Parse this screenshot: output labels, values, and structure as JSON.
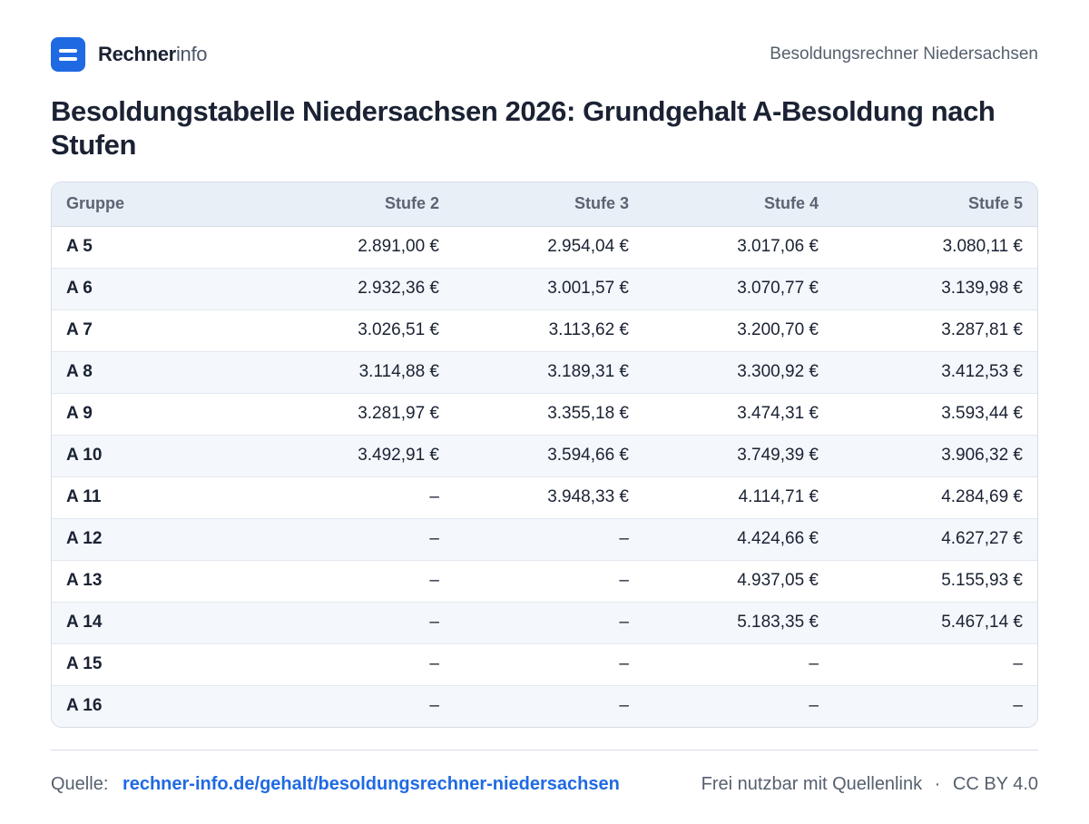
{
  "header": {
    "brand_bold": "Rechner",
    "brand_light": "info",
    "context": "Besoldungsrechner Niedersachsen",
    "logo_icon": "equals-icon"
  },
  "title": "Besoldungstabelle Niedersachsen 2026: Grundgehalt A-Besoldung nach Stufen",
  "table": {
    "columns": [
      "Gruppe",
      "Stufe 2",
      "Stufe 3",
      "Stufe 4",
      "Stufe 5"
    ],
    "rows": [
      [
        "A 5",
        "2.891,00 €",
        "2.954,04 €",
        "3.017,06 €",
        "3.080,11 €"
      ],
      [
        "A 6",
        "2.932,36 €",
        "3.001,57 €",
        "3.070,77 €",
        "3.139,98 €"
      ],
      [
        "A 7",
        "3.026,51 €",
        "3.113,62 €",
        "3.200,70 €",
        "3.287,81 €"
      ],
      [
        "A 8",
        "3.114,88 €",
        "3.189,31 €",
        "3.300,92 €",
        "3.412,53 €"
      ],
      [
        "A 9",
        "3.281,97 €",
        "3.355,18 €",
        "3.474,31 €",
        "3.593,44 €"
      ],
      [
        "A 10",
        "3.492,91 €",
        "3.594,66 €",
        "3.749,39 €",
        "3.906,32 €"
      ],
      [
        "A 11",
        "–",
        "3.948,33 €",
        "4.114,71 €",
        "4.284,69 €"
      ],
      [
        "A 12",
        "–",
        "–",
        "4.424,66 €",
        "4.627,27 €"
      ],
      [
        "A 13",
        "–",
        "–",
        "4.937,05 €",
        "5.155,93 €"
      ],
      [
        "A 14",
        "–",
        "–",
        "5.183,35 €",
        "5.467,14 €"
      ],
      [
        "A 15",
        "–",
        "–",
        "–",
        "–"
      ],
      [
        "A 16",
        "–",
        "–",
        "–",
        "–"
      ]
    ]
  },
  "footer": {
    "source_label": "Quelle:",
    "source_link": "rechner-info.de/gehalt/besoldungsrechner-niedersachsen",
    "usage": "Frei nutzbar mit Quellenlink",
    "separator": "·",
    "license": "CC BY 4.0"
  },
  "colors": {
    "accent": "#1f6ae3",
    "header_bg": "#e9eff6",
    "stripe_bg": "#f4f7fb"
  }
}
